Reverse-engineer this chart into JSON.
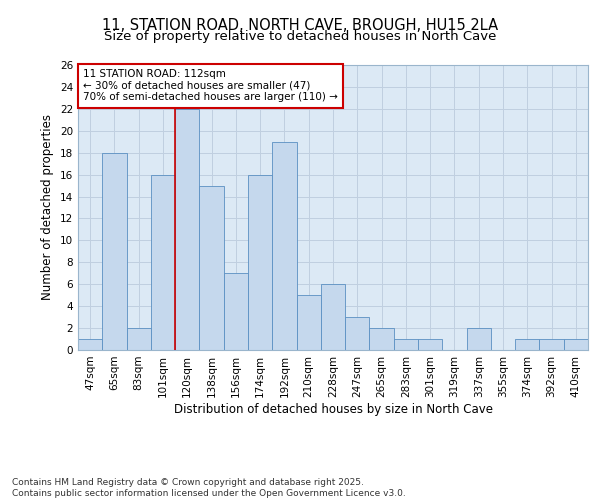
{
  "title_line1": "11, STATION ROAD, NORTH CAVE, BROUGH, HU15 2LA",
  "title_line2": "Size of property relative to detached houses in North Cave",
  "xlabel": "Distribution of detached houses by size in North Cave",
  "ylabel": "Number of detached properties",
  "categories": [
    "47sqm",
    "65sqm",
    "83sqm",
    "101sqm",
    "120sqm",
    "138sqm",
    "156sqm",
    "174sqm",
    "192sqm",
    "210sqm",
    "228sqm",
    "247sqm",
    "265sqm",
    "283sqm",
    "301sqm",
    "319sqm",
    "337sqm",
    "355sqm",
    "374sqm",
    "392sqm",
    "410sqm"
  ],
  "values": [
    1,
    18,
    2,
    16,
    22,
    15,
    7,
    16,
    19,
    5,
    6,
    3,
    2,
    1,
    1,
    0,
    2,
    0,
    1,
    1,
    1
  ],
  "bar_color": "#c5d8ed",
  "bar_edgecolor": "#5a8fc2",
  "grid_color": "#c0cfe0",
  "background_color": "#dce9f5",
  "annotation_line1": "11 STATION ROAD: 112sqm",
  "annotation_line2": "← 30% of detached houses are smaller (47)",
  "annotation_line3": "70% of semi-detached houses are larger (110) →",
  "annotation_box_facecolor": "#ffffff",
  "annotation_box_edgecolor": "#cc0000",
  "vline_color": "#cc0000",
  "vline_x_index": 3.5,
  "ylim": [
    0,
    26
  ],
  "yticks": [
    0,
    2,
    4,
    6,
    8,
    10,
    12,
    14,
    16,
    18,
    20,
    22,
    24,
    26
  ],
  "footer_text": "Contains HM Land Registry data © Crown copyright and database right 2025.\nContains public sector information licensed under the Open Government Licence v3.0.",
  "title_fontsize": 10.5,
  "subtitle_fontsize": 9.5,
  "axis_label_fontsize": 8.5,
  "tick_fontsize": 7.5,
  "annotation_fontsize": 7.5,
  "footer_fontsize": 6.5
}
